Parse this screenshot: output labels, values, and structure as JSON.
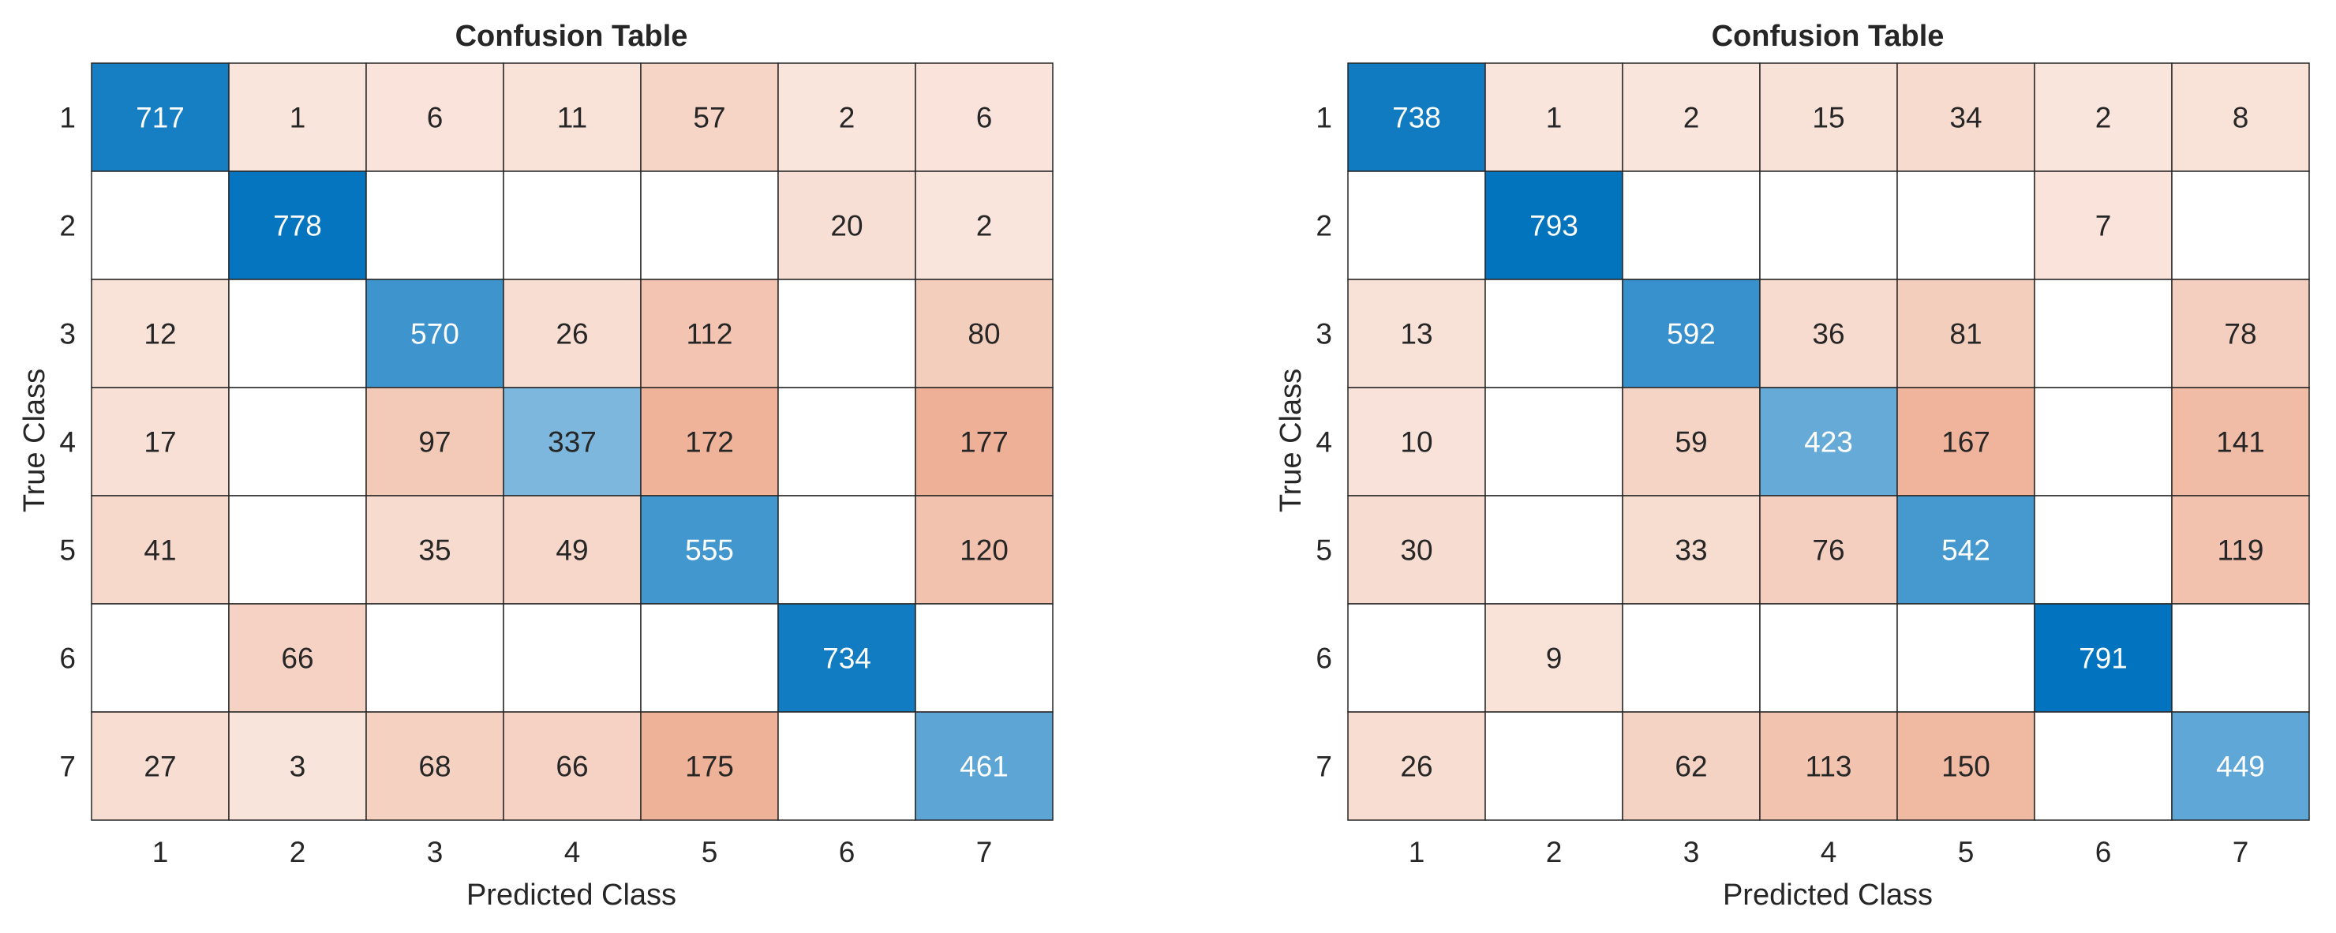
{
  "chart_data": [
    {
      "type": "heatmap",
      "title": "Confusion Table",
      "xlabel": "Predicted Class",
      "ylabel": "True Class",
      "x_ticks": [
        "1",
        "2",
        "3",
        "4",
        "5",
        "6",
        "7"
      ],
      "y_ticks": [
        "1",
        "2",
        "3",
        "4",
        "5",
        "6",
        "7"
      ],
      "matrix": [
        [
          717,
          1,
          6,
          11,
          57,
          2,
          6
        ],
        [
          0,
          778,
          0,
          0,
          0,
          20,
          2
        ],
        [
          12,
          0,
          570,
          26,
          112,
          0,
          80
        ],
        [
          17,
          0,
          97,
          337,
          172,
          0,
          177
        ],
        [
          41,
          0,
          35,
          49,
          555,
          0,
          120
        ],
        [
          0,
          66,
          0,
          0,
          0,
          734,
          0
        ],
        [
          27,
          3,
          68,
          66,
          175,
          0,
          461
        ]
      ],
      "zero_cells_blank": true,
      "diagonal_color": "#0072bd",
      "offdiagonal_color": "#d95319"
    },
    {
      "type": "heatmap",
      "title": "Confusion Table",
      "xlabel": "Predicted Class",
      "ylabel": "True Class",
      "x_ticks": [
        "1",
        "2",
        "3",
        "4",
        "5",
        "6",
        "7"
      ],
      "y_ticks": [
        "1",
        "2",
        "3",
        "4",
        "5",
        "6",
        "7"
      ],
      "matrix": [
        [
          738,
          1,
          2,
          15,
          34,
          2,
          8
        ],
        [
          0,
          793,
          0,
          0,
          0,
          7,
          0
        ],
        [
          13,
          0,
          592,
          36,
          81,
          0,
          78
        ],
        [
          10,
          0,
          59,
          423,
          167,
          0,
          141
        ],
        [
          30,
          0,
          33,
          76,
          542,
          0,
          119
        ],
        [
          0,
          9,
          0,
          0,
          0,
          791,
          0
        ],
        [
          26,
          0,
          62,
          113,
          150,
          0,
          449
        ]
      ],
      "zero_cells_blank": true,
      "diagonal_color": "#0072bd",
      "offdiagonal_color": "#d95319"
    }
  ]
}
